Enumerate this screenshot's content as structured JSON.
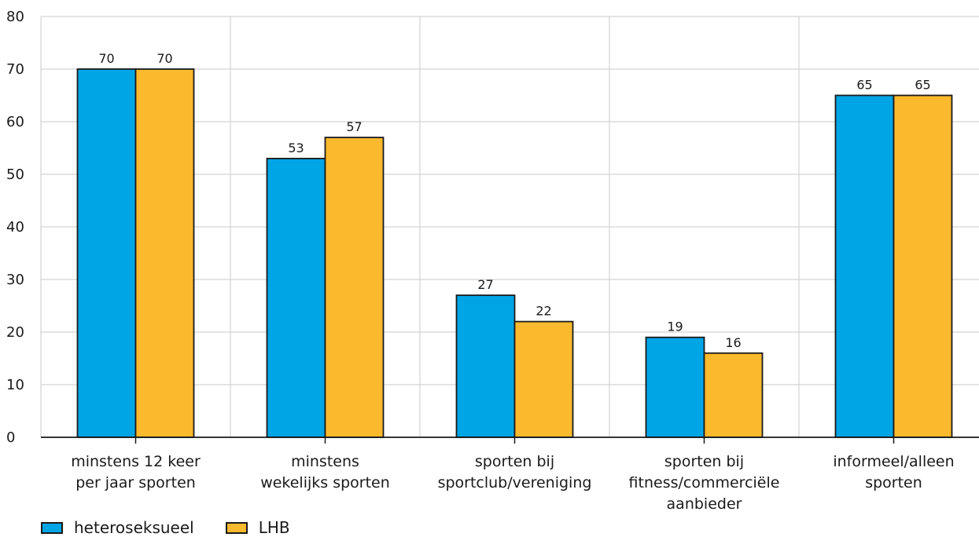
{
  "chart_data": {
    "type": "bar",
    "categories": [
      [
        "minstens 12 keer",
        "per jaar sporten"
      ],
      [
        "minstens",
        "wekelijks sporten"
      ],
      [
        "sporten bij",
        "sportclub/vereniging"
      ],
      [
        "sporten bij",
        "fitness/commerciële",
        "aanbieder"
      ],
      [
        "informeel/alleen",
        "sporten"
      ]
    ],
    "series": [
      {
        "name": "heteroseksueel",
        "color": "#00a5e6",
        "values": [
          70,
          53,
          27,
          19,
          65
        ]
      },
      {
        "name": "LHB",
        "color": "#fbb92e",
        "values": [
          70,
          57,
          22,
          16,
          65
        ]
      }
    ],
    "ylim": [
      0,
      80
    ],
    "yticks": [
      0,
      10,
      20,
      30,
      40,
      50,
      60,
      70,
      80
    ],
    "grid": true,
    "legend_position": "bottom-left",
    "data_labels": true
  }
}
